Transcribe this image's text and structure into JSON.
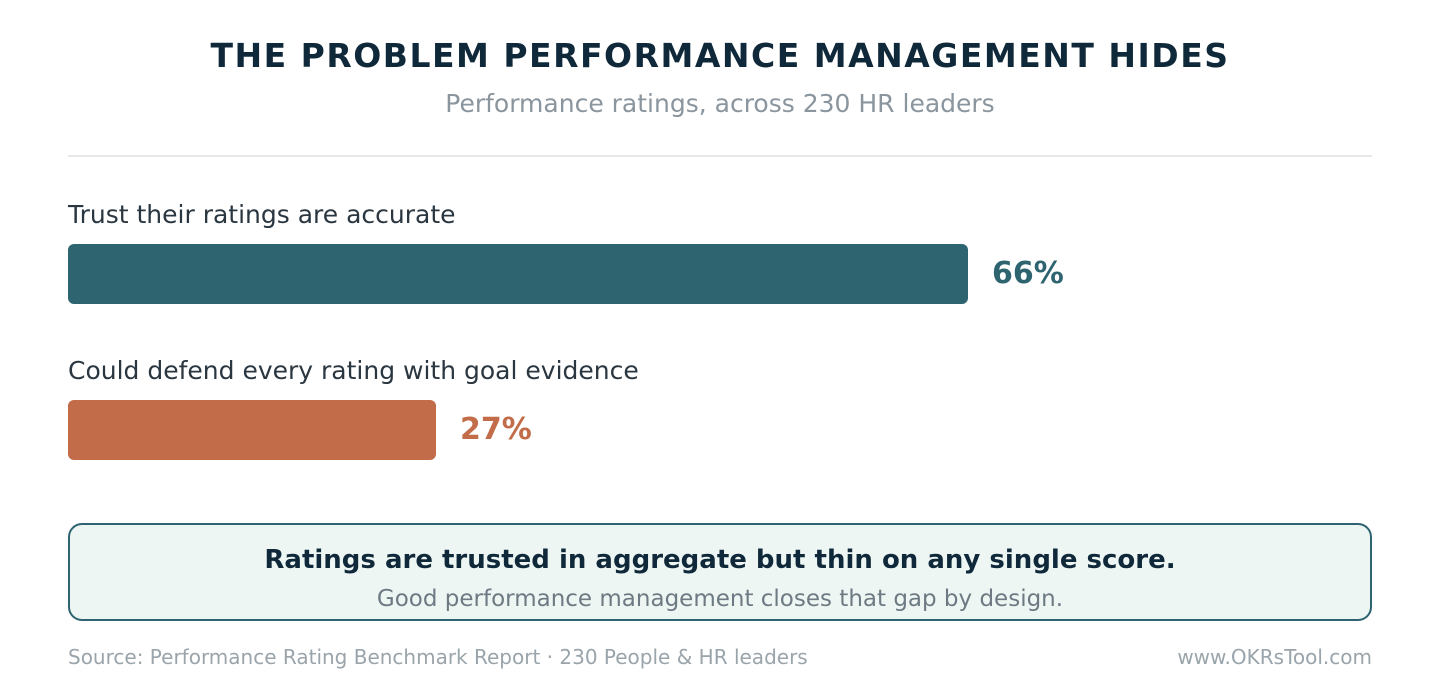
{
  "chart_data": {
    "type": "bar",
    "orientation": "horizontal",
    "title": "THE PROBLEM PERFORMANCE MANAGEMENT HIDES",
    "subtitle": "Performance ratings, across 230 HR leaders",
    "xlim": [
      0,
      100
    ],
    "grid": false,
    "bars": [
      {
        "category": "Trust their ratings are accurate",
        "value": 66,
        "value_label": "66%",
        "color": "#2e6470"
      },
      {
        "category": "Could defend every rating with goal evidence",
        "value": 27,
        "value_label": "27%",
        "color": "#c26c4a"
      }
    ]
  },
  "callout": {
    "headline": "Ratings are trusted in aggregate but thin on any single score.",
    "subtext": "Good performance management closes that gap by design."
  },
  "footer": {
    "source": "Source: Performance Rating Benchmark Report · 230 People & HR leaders",
    "website": "www.OKRsTool.com"
  }
}
